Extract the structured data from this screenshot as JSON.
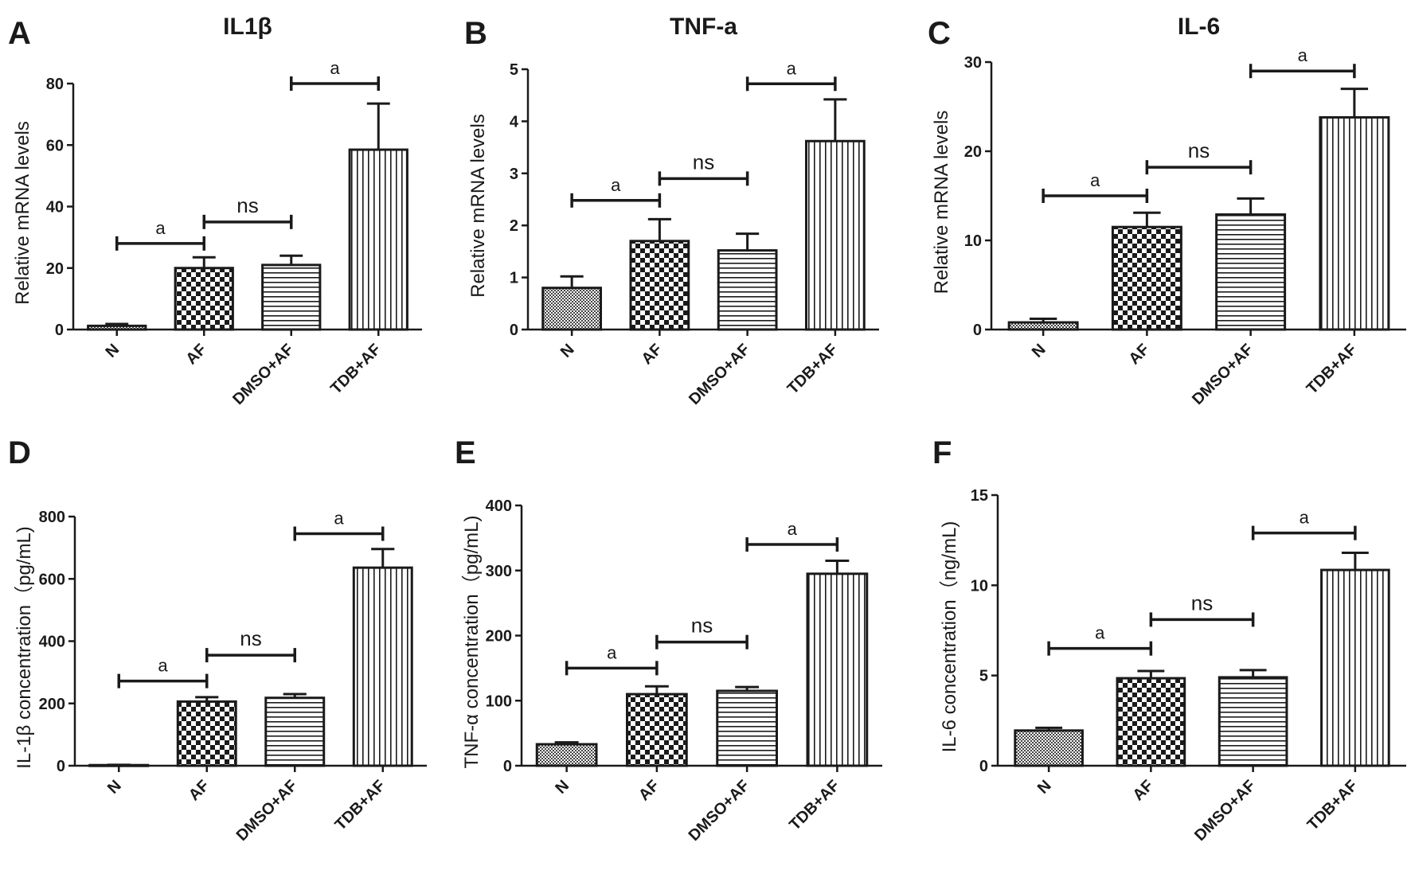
{
  "figure": {
    "colors": {
      "ink": "#1a1a1a",
      "background": "#ffffff"
    },
    "panel_labels": [
      "A",
      "B",
      "C",
      "D",
      "E",
      "F"
    ]
  },
  "chart_data": [
    {
      "panel": "A",
      "type": "bar",
      "title": "IL1β",
      "xlabel": "",
      "ylabel": "Relative mRNA levels",
      "categories": [
        "N",
        "AF",
        "DMSO+AF",
        "TDB+AF"
      ],
      "values": [
        1.2,
        20,
        21,
        58.5
      ],
      "errors": [
        0.6,
        3.5,
        3,
        15
      ],
      "fills": [
        "dots",
        "checker",
        "hlines",
        "vlines"
      ],
      "ylim": [
        0,
        80
      ],
      "yticks": [
        0,
        20,
        40,
        60,
        80
      ],
      "comparisons": [
        {
          "from": 0,
          "to": 1,
          "label": "a",
          "y": 28
        },
        {
          "from": 1,
          "to": 2,
          "label": "ns",
          "y": 35
        },
        {
          "from": 2,
          "to": 3,
          "label": "a",
          "y": 80
        }
      ]
    },
    {
      "panel": "B",
      "type": "bar",
      "title": "TNF-a",
      "xlabel": "",
      "ylabel": "Relative mRNA levels",
      "categories": [
        "N",
        "AF",
        "DMSO+AF",
        "TDB+AF"
      ],
      "values": [
        0.8,
        1.7,
        1.52,
        3.62
      ],
      "errors": [
        0.22,
        0.42,
        0.32,
        0.8
      ],
      "fills": [
        "dots",
        "checker",
        "hlines",
        "vlines"
      ],
      "ylim": [
        0,
        5
      ],
      "yticks": [
        0,
        1,
        2,
        3,
        4,
        5
      ],
      "comparisons": [
        {
          "from": 0,
          "to": 1,
          "label": "a",
          "y": 2.48
        },
        {
          "from": 1,
          "to": 2,
          "label": "ns",
          "y": 2.9
        },
        {
          "from": 2,
          "to": 3,
          "label": "a",
          "y": 4.72
        }
      ]
    },
    {
      "panel": "C",
      "type": "bar",
      "title": "IL-6",
      "xlabel": "",
      "ylabel": "Relative mRNA levels",
      "categories": [
        "N",
        "AF",
        "DMSO+AF",
        "TDB+AF"
      ],
      "values": [
        0.8,
        11.5,
        12.9,
        23.8
      ],
      "errors": [
        0.4,
        1.6,
        1.8,
        3.2
      ],
      "fills": [
        "dots",
        "checker",
        "hlines",
        "vlines"
      ],
      "ylim": [
        0,
        30
      ],
      "yticks": [
        0,
        10,
        20,
        30
      ],
      "comparisons": [
        {
          "from": 0,
          "to": 1,
          "label": "a",
          "y": 15
        },
        {
          "from": 1,
          "to": 2,
          "label": "ns",
          "y": 18.2
        },
        {
          "from": 2,
          "to": 3,
          "label": "a",
          "y": 29
        }
      ]
    },
    {
      "panel": "D",
      "type": "bar",
      "title": "",
      "xlabel": "",
      "ylabel": "IL-1β concentration（pg/mL)",
      "categories": [
        "N",
        "AF",
        "DMSO+AF",
        "TDB+AF"
      ],
      "values": [
        2,
        206,
        218,
        636
      ],
      "errors": [
        1,
        14,
        12,
        60
      ],
      "fills": [
        "dots",
        "checker",
        "hlines",
        "vlines"
      ],
      "ylim": [
        0,
        800
      ],
      "yticks": [
        0,
        200,
        400,
        600,
        800
      ],
      "comparisons": [
        {
          "from": 0,
          "to": 1,
          "label": "a",
          "y": 272
        },
        {
          "from": 1,
          "to": 2,
          "label": "ns",
          "y": 355
        },
        {
          "from": 2,
          "to": 3,
          "label": "a",
          "y": 745
        }
      ]
    },
    {
      "panel": "E",
      "type": "bar",
      "title": "",
      "xlabel": "",
      "ylabel": "TNF-α concentration（pg/mL)",
      "categories": [
        "N",
        "AF",
        "DMSO+AF",
        "TDB+AF"
      ],
      "values": [
        33,
        110,
        115,
        295
      ],
      "errors": [
        3,
        12,
        6,
        20
      ],
      "fills": [
        "dots",
        "checker",
        "hlines",
        "vlines"
      ],
      "ylim": [
        0,
        400
      ],
      "yticks": [
        0,
        100,
        200,
        300,
        400
      ],
      "comparisons": [
        {
          "from": 0,
          "to": 1,
          "label": "a",
          "y": 150
        },
        {
          "from": 1,
          "to": 2,
          "label": "ns",
          "y": 190
        },
        {
          "from": 2,
          "to": 3,
          "label": "a",
          "y": 340
        }
      ]
    },
    {
      "panel": "F",
      "type": "bar",
      "title": "",
      "xlabel": "",
      "ylabel": "IL-6 concentration（ng/mL)",
      "categories": [
        "N",
        "AF",
        "DMSO+AF",
        "TDB+AF"
      ],
      "values": [
        1.95,
        4.85,
        4.9,
        10.85
      ],
      "errors": [
        0.15,
        0.4,
        0.4,
        0.95
      ],
      "fills": [
        "dots",
        "checker",
        "hlines",
        "vlines"
      ],
      "ylim": [
        0,
        15
      ],
      "yticks": [
        0,
        5,
        10,
        15
      ],
      "comparisons": [
        {
          "from": 0,
          "to": 1,
          "label": "a",
          "y": 6.5
        },
        {
          "from": 1,
          "to": 2,
          "label": "ns",
          "y": 8.1
        },
        {
          "from": 2,
          "to": 3,
          "label": "a",
          "y": 12.9
        }
      ]
    }
  ]
}
